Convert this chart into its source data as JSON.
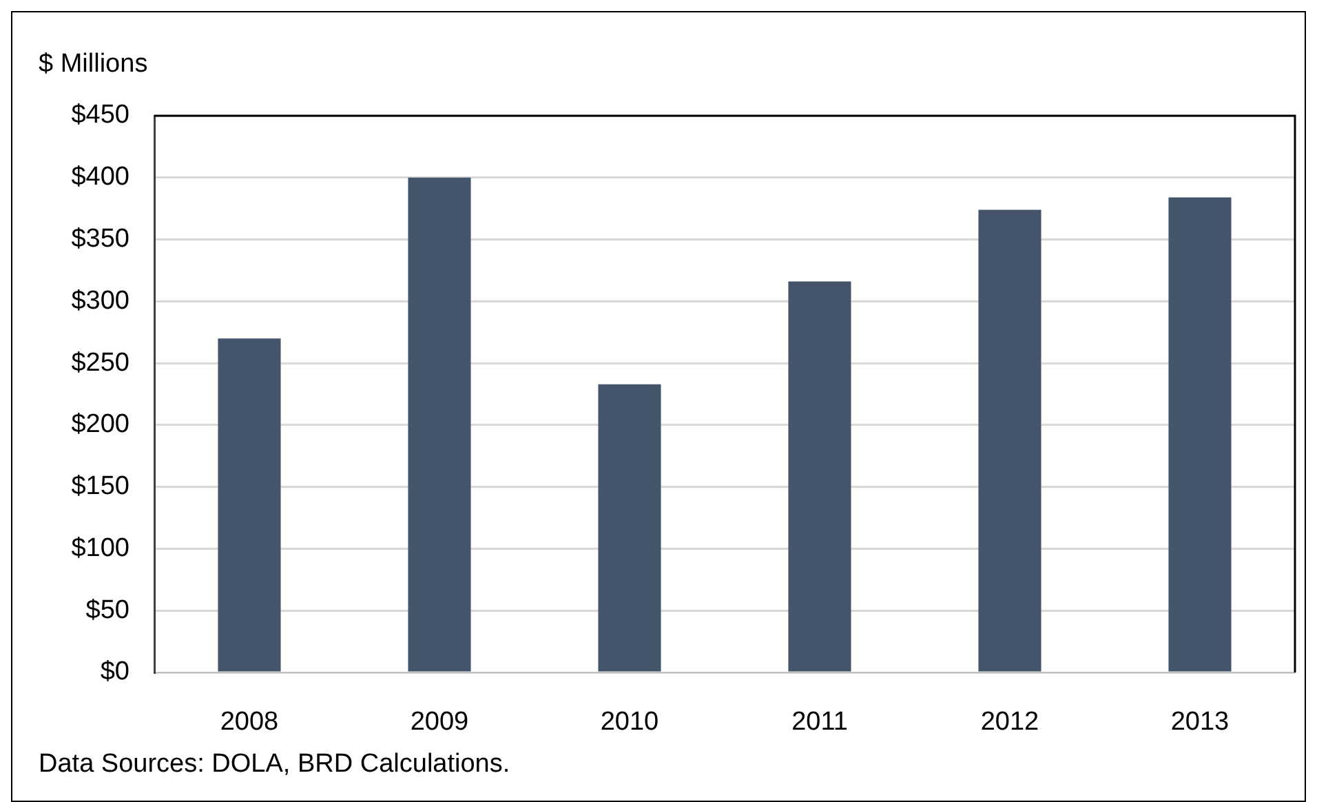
{
  "chart_data": {
    "type": "bar",
    "ylabel": "$ Millions",
    "annotations": [
      "Data Sources: DOLA, BRD Calculations."
    ],
    "categories": [
      "2008",
      "2009",
      "2010",
      "2011",
      "2012",
      "2013"
    ],
    "values": [
      270,
      400,
      233,
      316,
      374,
      384
    ],
    "color": "#44546a",
    "ylim": [
      0,
      450
    ],
    "yticks": [
      {
        "value": 0,
        "label": "$0"
      },
      {
        "value": 50,
        "label": "$50"
      },
      {
        "value": 100,
        "label": "$100"
      },
      {
        "value": 150,
        "label": "$150"
      },
      {
        "value": 200,
        "label": "$200"
      },
      {
        "value": 250,
        "label": "$250"
      },
      {
        "value": 300,
        "label": "$300"
      },
      {
        "value": 350,
        "label": "$350"
      },
      {
        "value": 400,
        "label": "$400"
      },
      {
        "value": 450,
        "label": "$450"
      }
    ],
    "grid": "y"
  }
}
